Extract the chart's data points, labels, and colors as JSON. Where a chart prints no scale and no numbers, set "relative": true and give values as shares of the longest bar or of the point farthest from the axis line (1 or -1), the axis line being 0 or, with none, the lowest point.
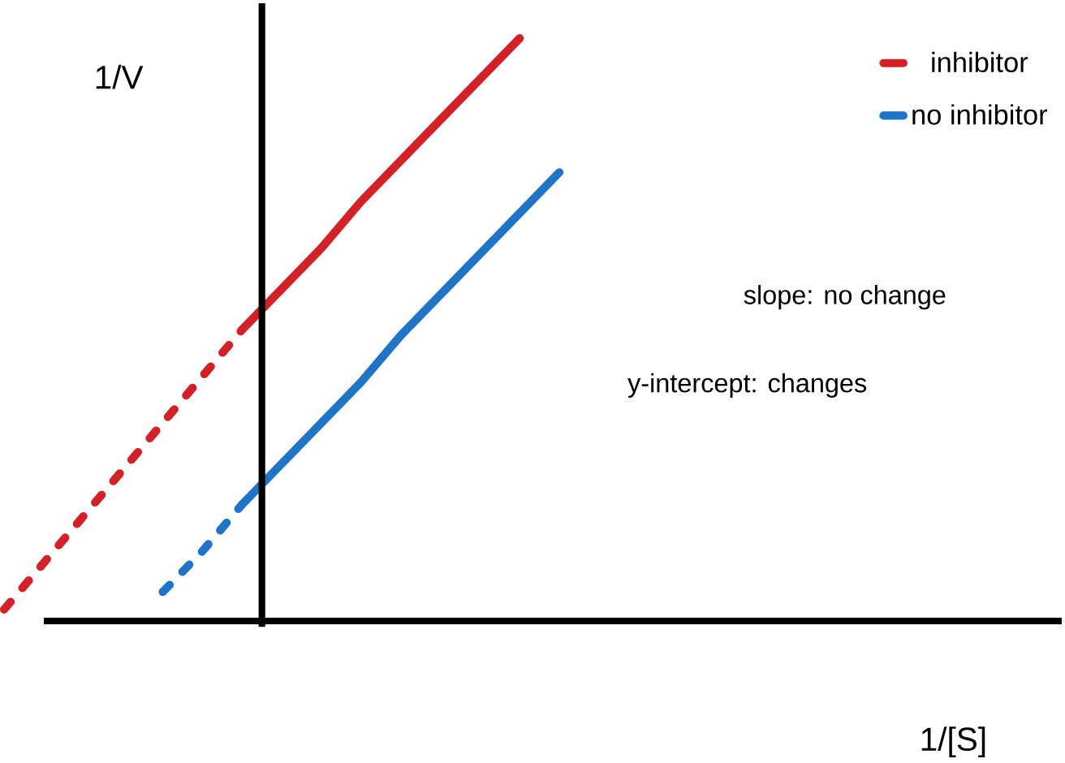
{
  "chart_data": {
    "type": "line",
    "relative": true,
    "legend": "top right",
    "xlabel": "1/[S]",
    "ylabel": "1/V",
    "categories": [
      null,
      null,
      null,
      null,
      null,
      null,
      null,
      null,
      null,
      null,
      null,
      null,
      null,
      null,
      null,
      null,
      null,
      null,
      null,
      null,
      null,
      null,
      null,
      null,
      null,
      null,
      null
    ],
    "annotations": [
      "slope: no change",
      "y-intercept: changes"
    ],
    "series": [
      {
        "name": "inhibitor",
        "color": "#d42027",
        "values": [
          null,
          null,
          null,
          null,
          null,
          null,
          0.5,
          0.57,
          0.64,
          0.72,
          0.79,
          0.86,
          0.93,
          1,
          null,
          null,
          null,
          null,
          null,
          null,
          null,
          null,
          null,
          null,
          null,
          null,
          null
        ]
      },
      {
        "name": "no inhibitor",
        "color": "#1f74c8",
        "values": [
          null,
          null,
          null,
          null,
          null,
          null,
          0.2,
          0.27,
          0.34,
          0.41,
          0.49,
          0.56,
          0.63,
          0.7,
          0.77,
          null,
          null,
          null,
          null,
          null,
          null,
          null,
          null,
          null,
          null,
          null,
          null
        ]
      },
      {
        "color": "#d42027",
        "line_style": "dotted",
        "values": [
          0.02,
          0.1,
          0.18,
          0.26,
          0.34,
          0.42,
          0.5,
          null,
          null,
          null,
          null,
          null,
          null,
          null,
          null,
          null,
          null,
          null,
          null,
          null,
          null,
          null,
          null,
          null,
          null,
          null,
          null
        ]
      },
      {
        "color": "#1f74c8",
        "line_style": "dotted",
        "values": [
          null,
          null,
          null,
          null,
          0.05,
          0.12,
          0.2,
          null,
          null,
          null,
          null,
          null,
          null,
          null,
          null,
          null,
          null,
          null,
          null,
          null,
          null,
          null,
          null,
          null,
          null,
          null,
          null
        ]
      }
    ]
  }
}
